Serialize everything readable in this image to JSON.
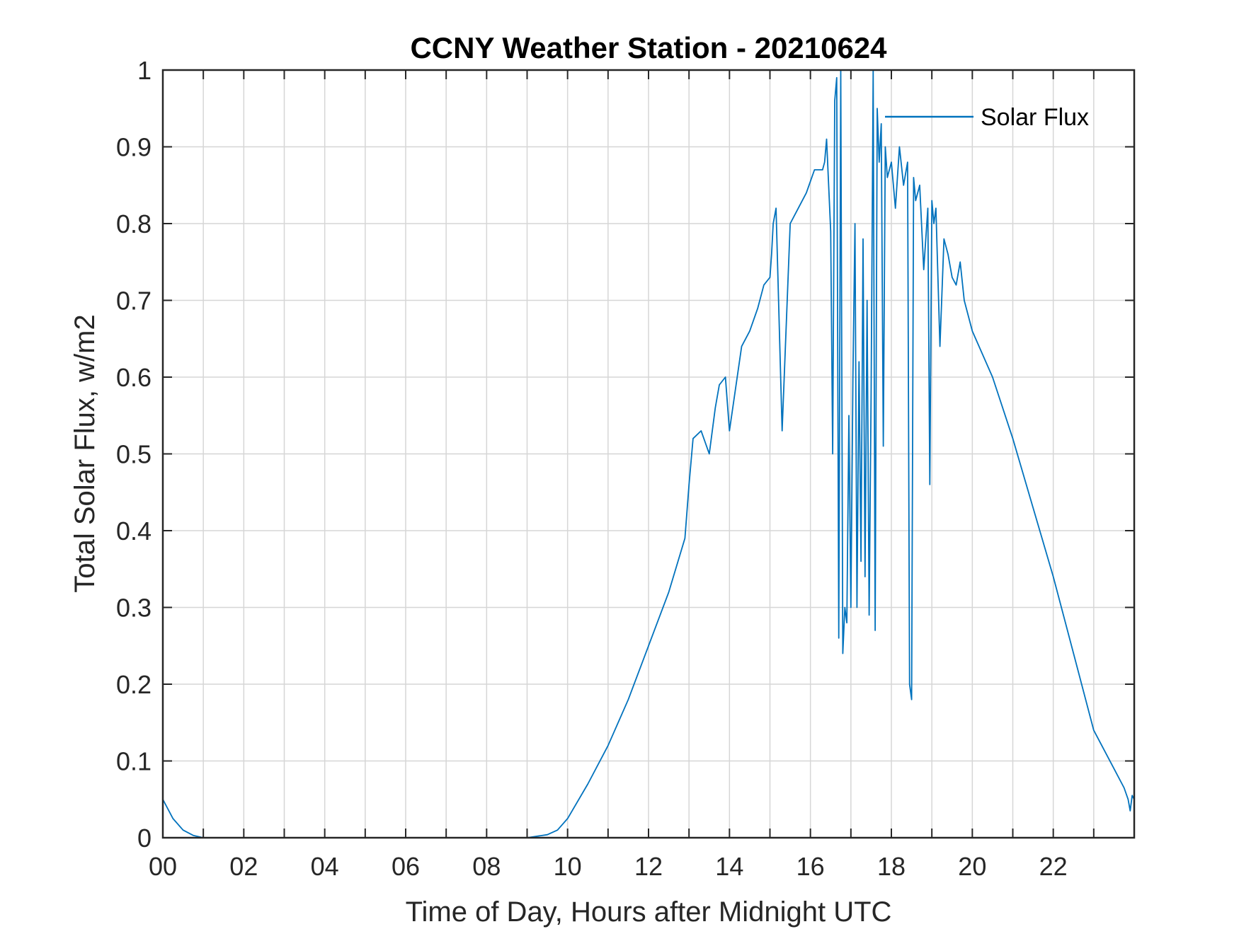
{
  "chart_data": {
    "type": "line",
    "title": "CCNY Weather Station - 20210624",
    "xlabel": "Time of Day, Hours after Midnight UTC",
    "ylabel": "Total Solar Flux, w/m2",
    "xlim": [
      0,
      24
    ],
    "ylim": [
      0,
      1
    ],
    "xticks": [
      0,
      2,
      4,
      6,
      8,
      10,
      12,
      14,
      16,
      18,
      20,
      22
    ],
    "xtick_labels": [
      "00",
      "02",
      "04",
      "06",
      "08",
      "10",
      "12",
      "14",
      "16",
      "18",
      "20",
      "22"
    ],
    "yticks": [
      0,
      0.1,
      0.2,
      0.3,
      0.4,
      0.5,
      0.6,
      0.7,
      0.8,
      0.9,
      1
    ],
    "ytick_labels": [
      "0",
      "0.1",
      "0.2",
      "0.3",
      "0.4",
      "0.5",
      "0.6",
      "0.7",
      "0.8",
      "0.9",
      "1"
    ],
    "grid": true,
    "legend_position": "top-right",
    "series": [
      {
        "name": "Solar Flux",
        "color": "#0072BD",
        "x": [
          0,
          0.25,
          0.5,
          0.75,
          1.0,
          2,
          4,
          6,
          8,
          9.0,
          9.5,
          9.75,
          10,
          10.5,
          11,
          11.5,
          12,
          12.5,
          12.9,
          13.0,
          13.1,
          13.3,
          13.5,
          13.65,
          13.75,
          13.9,
          14.0,
          14.3,
          14.5,
          14.7,
          14.85,
          15.0,
          15.04,
          15.08,
          15.15,
          15.3,
          15.5,
          15.7,
          15.9,
          16.1,
          16.3,
          16.35,
          16.4,
          16.5,
          16.55,
          16.6,
          16.65,
          16.7,
          16.75,
          16.8,
          16.85,
          16.9,
          16.95,
          17.0,
          17.05,
          17.1,
          17.15,
          17.2,
          17.25,
          17.3,
          17.35,
          17.4,
          17.45,
          17.5,
          17.55,
          17.6,
          17.65,
          17.7,
          17.75,
          17.8,
          17.85,
          17.9,
          18.0,
          18.1,
          18.2,
          18.3,
          18.4,
          18.45,
          18.5,
          18.55,
          18.6,
          18.7,
          18.8,
          18.9,
          18.95,
          19.0,
          19.05,
          19.1,
          19.2,
          19.3,
          19.4,
          19.5,
          19.6,
          19.7,
          19.8,
          20.0,
          20.5,
          21.0,
          21.5,
          22.0,
          22.5,
          23.0,
          23.5,
          23.75,
          23.85,
          23.9,
          23.95,
          24.0
        ],
        "values": [
          0.05,
          0.025,
          0.01,
          0.003,
          0.0,
          0.0,
          0.0,
          0.0,
          0.0,
          0.0,
          0.004,
          0.01,
          0.025,
          0.07,
          0.12,
          0.18,
          0.25,
          0.32,
          0.39,
          0.46,
          0.52,
          0.53,
          0.5,
          0.56,
          0.59,
          0.6,
          0.53,
          0.64,
          0.66,
          0.69,
          0.72,
          0.73,
          0.76,
          0.8,
          0.82,
          0.53,
          0.8,
          0.82,
          0.84,
          0.87,
          0.87,
          0.88,
          0.91,
          0.79,
          0.5,
          0.96,
          0.99,
          0.26,
          1.0,
          0.24,
          0.3,
          0.28,
          0.55,
          0.3,
          0.6,
          0.8,
          0.3,
          0.62,
          0.36,
          0.78,
          0.34,
          0.7,
          0.29,
          0.58,
          1.0,
          0.27,
          0.95,
          0.88,
          0.93,
          0.51,
          0.9,
          0.86,
          0.88,
          0.82,
          0.9,
          0.85,
          0.88,
          0.2,
          0.18,
          0.86,
          0.83,
          0.85,
          0.74,
          0.82,
          0.46,
          0.83,
          0.8,
          0.82,
          0.64,
          0.78,
          0.76,
          0.73,
          0.72,
          0.75,
          0.7,
          0.66,
          0.6,
          0.52,
          0.43,
          0.34,
          0.24,
          0.14,
          0.09,
          0.065,
          0.05,
          0.035,
          0.055,
          0.05
        ]
      }
    ]
  }
}
